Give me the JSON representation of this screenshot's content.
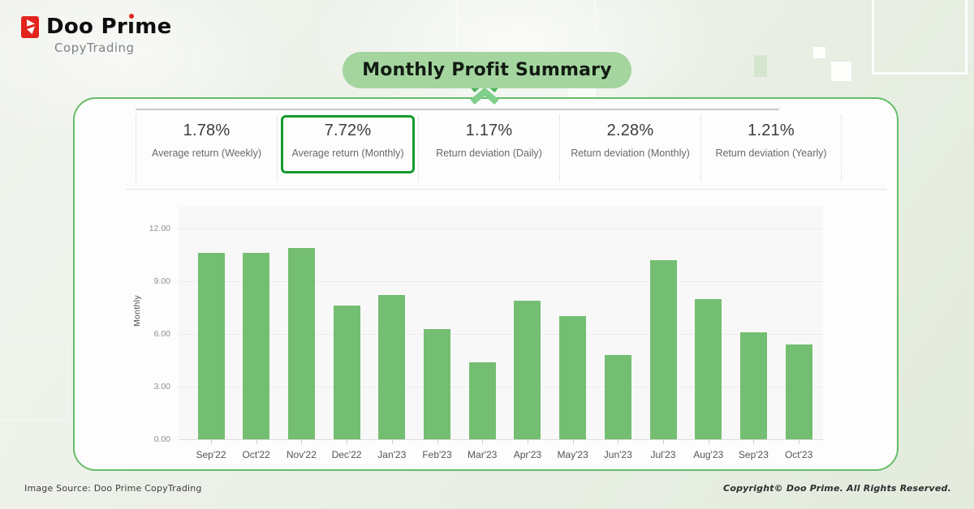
{
  "logo": {
    "brand_pre_i": "Doo Pr",
    "brand_dotless_i": "ı",
    "brand_post_i": "me",
    "brand_full": "Doo Prime",
    "subtitle": "CopyTrading",
    "accent_color": "#e3241d"
  },
  "title": {
    "text": "Monthly Profit Summary",
    "pill_color": "#a4d59f"
  },
  "stats": {
    "highlight_color": "#149a2e",
    "items": [
      {
        "value": "1.78%",
        "label": "Average return (Weekly)",
        "highlighted": false
      },
      {
        "value": "7.72%",
        "label": "Average return (Monthly)",
        "highlighted": true
      },
      {
        "value": "1.17%",
        "label": "Return deviation (Daily)",
        "highlighted": false
      },
      {
        "value": "2.28%",
        "label": "Return deviation (Monthly)",
        "highlighted": false
      },
      {
        "value": "1.21%",
        "label": "Return deviation (Yearly)",
        "highlighted": false
      }
    ]
  },
  "chart_data": {
    "type": "bar",
    "categories": [
      "Sep'22",
      "Oct'22",
      "Nov'22",
      "Dec'22",
      "Jan'23",
      "Feb'23",
      "Mar'23",
      "Apr'23",
      "May'23",
      "Jun'23",
      "Jul'23",
      "Aug'23",
      "Sep'23",
      "Oct'23"
    ],
    "values": [
      10.6,
      10.6,
      10.9,
      7.6,
      8.2,
      6.3,
      4.4,
      7.9,
      7.0,
      4.8,
      10.2,
      8.0,
      6.1,
      5.4
    ],
    "title": "Monthly Profit Summary",
    "xlabel": "",
    "ylabel": "Monthly",
    "ylim": [
      0,
      12
    ],
    "yticks": [
      0,
      3,
      6,
      9,
      12
    ],
    "ytick_labels": [
      "0.00",
      "3.00",
      "6.00",
      "9.00",
      "12.00"
    ],
    "grid": true,
    "legend": null,
    "bar_color": "#74be72"
  },
  "footer": {
    "source": "Image Source: Doo Prime CopyTrading",
    "copyright": "Copyright© Doo Prime. All Rights Reserved."
  }
}
